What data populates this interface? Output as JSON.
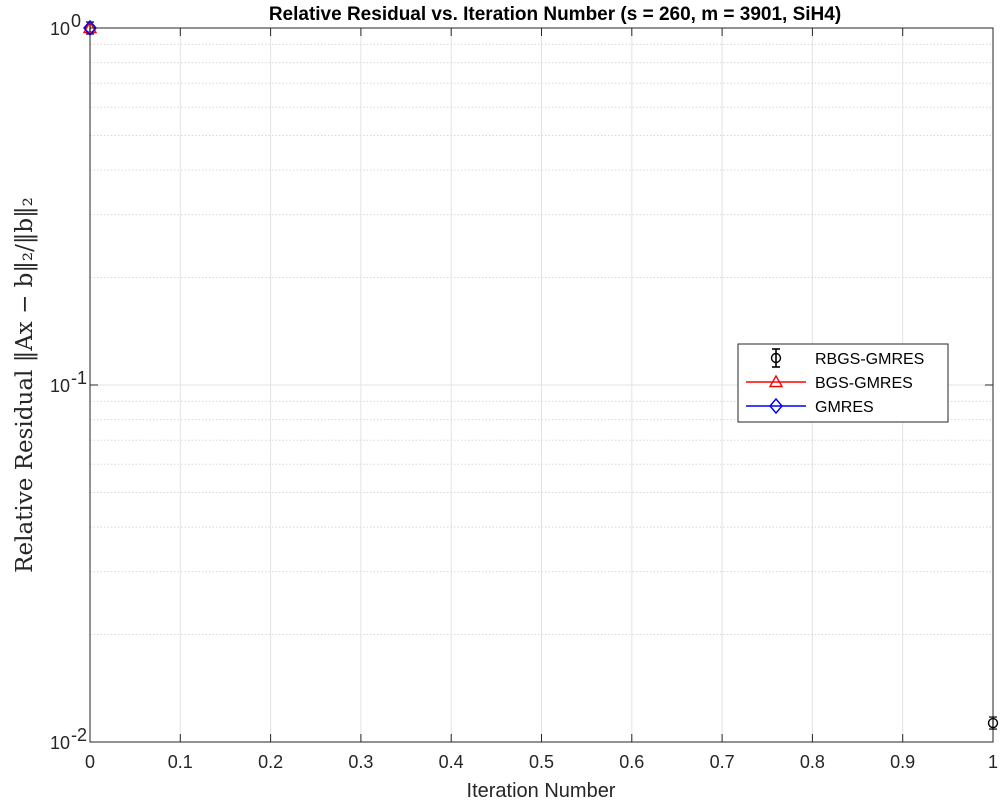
{
  "chart_data": {
    "type": "line",
    "title": "Relative Residual vs. Iteration Number (s = 260, m = 3901, SiH4)",
    "xlabel": "Iteration Number",
    "ylabel": "Relative Residual ‖Ax − b‖₂/‖b‖₂",
    "xlim": [
      0,
      1
    ],
    "ylim": [
      0.01,
      1
    ],
    "yscale": "log",
    "grid": true,
    "x_ticks": [
      "0",
      "0.1",
      "0.2",
      "0.3",
      "0.4",
      "0.5",
      "0.6",
      "0.7",
      "0.8",
      "0.9",
      "1"
    ],
    "x_tick_values": [
      0,
      0.1,
      0.2,
      0.3,
      0.4,
      0.5,
      0.6,
      0.7,
      0.8,
      0.9,
      1
    ],
    "y_ticks": [
      {
        "value": 1,
        "base": "10",
        "exp": "0"
      },
      {
        "value": 0.1,
        "base": "10",
        "exp": "-1"
      },
      {
        "value": 0.01,
        "base": "10",
        "exp": "-2"
      }
    ],
    "legend_position": "center-right",
    "series": [
      {
        "name": "RBGS-GMRES",
        "color": "#000000",
        "marker": "circle",
        "errorbar": true,
        "x": [
          0,
          1
        ],
        "y": [
          1,
          0.0113
        ]
      },
      {
        "name": "BGS-GMRES",
        "color": "#ff0000",
        "marker": "triangle",
        "x": [
          0
        ],
        "y": [
          1
        ]
      },
      {
        "name": "GMRES",
        "color": "#0000ff",
        "marker": "diamond",
        "x": [
          0
        ],
        "y": [
          1
        ]
      }
    ]
  }
}
